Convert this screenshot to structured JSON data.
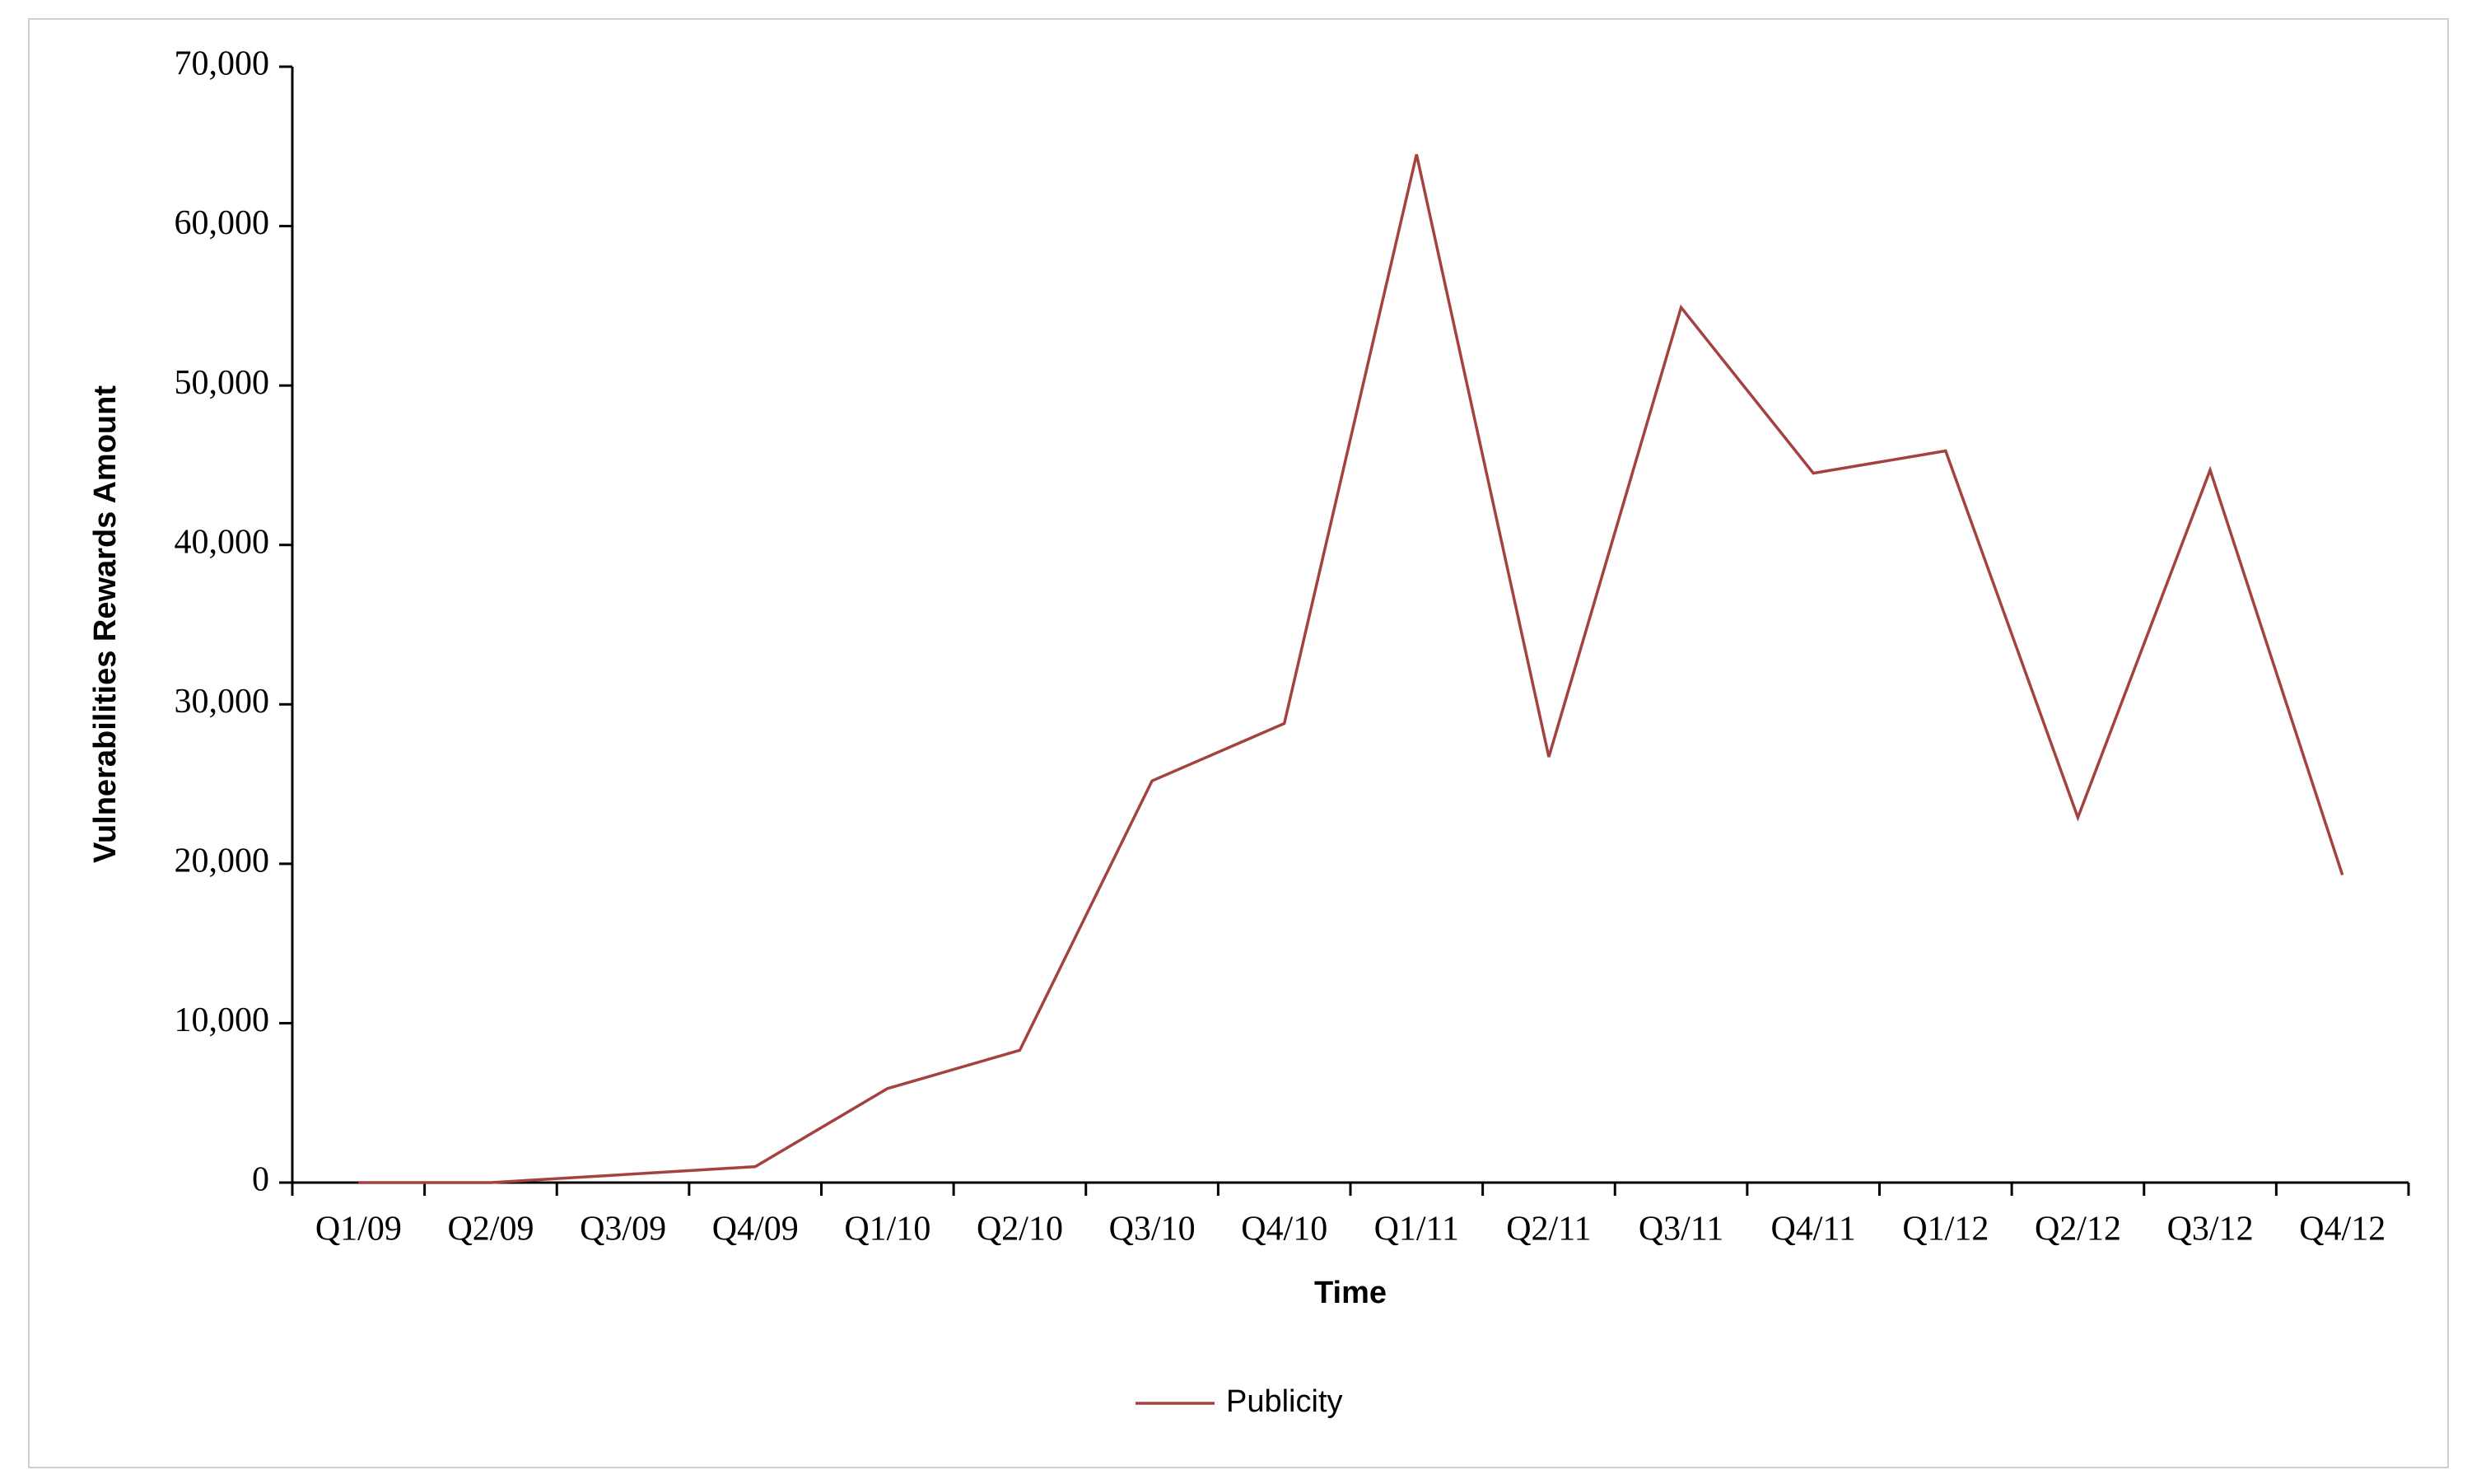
{
  "chart_data": {
    "type": "line",
    "x_label": "Time",
    "y_label": "Vulnerabilities Rewards Amount",
    "categories": [
      "Q1/09",
      "Q2/09",
      "Q3/09",
      "Q4/09",
      "Q1/10",
      "Q2/10",
      "Q3/10",
      "Q4/10",
      "Q1/11",
      "Q2/11",
      "Q3/11",
      "Q4/11",
      "Q1/12",
      "Q2/12",
      "Q3/12",
      "Q4/12"
    ],
    "series": [
      {
        "name": "Publicity",
        "color": "#a3423f",
        "values": [
          0,
          0,
          500,
          1000,
          5900,
          8300,
          25200,
          28800,
          64500,
          26700,
          54900,
          44500,
          45900,
          22900,
          44700,
          19300
        ]
      }
    ],
    "ylim": [
      0,
      70000
    ],
    "yticks": [
      0,
      {
        "value": 10000,
        "label": "10,000"
      },
      {
        "value": 20000,
        "label": "20,000"
      },
      {
        "value": 30000,
        "label": "30,000"
      },
      {
        "value": 40000,
        "label": "40,000"
      },
      {
        "value": 50000,
        "label": "50,000"
      },
      {
        "value": 60000,
        "label": "60,000"
      },
      {
        "value": 70000,
        "label": "70,000"
      }
    ],
    "grid": false,
    "legend": "bottom"
  }
}
